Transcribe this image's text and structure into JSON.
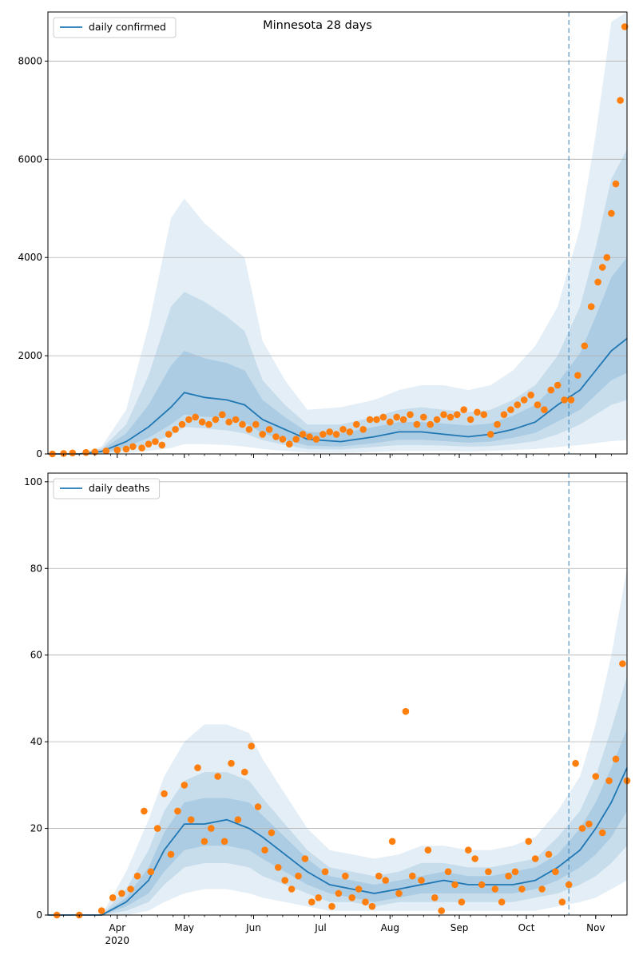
{
  "chart_data": [
    {
      "type": "line",
      "title": "Minnesota 28 days",
      "legend": {
        "position": "top-left",
        "entries": [
          "daily confirmed"
        ]
      },
      "ylim": [
        0,
        9000
      ],
      "yticks": [
        0,
        2000,
        4000,
        6000,
        8000
      ],
      "xlim": [
        "2020-03-01",
        "2020-11-15"
      ],
      "grid": "horizontal",
      "cutoff_date": "2020-10-20",
      "colors": {
        "line": "#1f77b4",
        "band": "#1f77b4",
        "points": "#ff7f0e",
        "cutoff": "#1f77b4"
      },
      "series": [
        {
          "name": "daily confirmed",
          "style": "line",
          "x": [
            "2020-03-01",
            "2020-03-15",
            "2020-03-25",
            "2020-04-05",
            "2020-04-15",
            "2020-04-25",
            "2020-05-01",
            "2020-05-10",
            "2020-05-20",
            "2020-05-28",
            "2020-06-05",
            "2020-06-15",
            "2020-06-25",
            "2020-07-10",
            "2020-07-25",
            "2020-08-05",
            "2020-08-15",
            "2020-08-25",
            "2020-09-05",
            "2020-09-15",
            "2020-09-25",
            "2020-10-05",
            "2020-10-15",
            "2020-10-25",
            "2020-11-01",
            "2020-11-08",
            "2020-11-15"
          ],
          "values": [
            0,
            0,
            50,
            250,
            550,
            950,
            1250,
            1150,
            1100,
            1000,
            700,
            500,
            300,
            250,
            350,
            450,
            450,
            400,
            350,
            400,
            500,
            650,
            1000,
            1300,
            1700,
            2100,
            2350
          ]
        }
      ],
      "bands": [
        {
          "level": "outer",
          "upper": [
            0,
            0,
            150,
            900,
            2600,
            4800,
            5200,
            4700,
            4300,
            4000,
            2300,
            1500,
            900,
            950,
            1100,
            1300,
            1400,
            1400,
            1300,
            1400,
            1700,
            2200,
            3000,
            4600,
            6500,
            8800,
            9000
          ],
          "lower": [
            0,
            0,
            0,
            20,
            60,
            120,
            200,
            200,
            180,
            150,
            100,
            60,
            30,
            20,
            40,
            60,
            60,
            60,
            50,
            60,
            80,
            100,
            140,
            180,
            220,
            260,
            280
          ]
        },
        {
          "level": "mid",
          "upper": [
            0,
            0,
            110,
            600,
            1600,
            3000,
            3300,
            3100,
            2800,
            2500,
            1500,
            1000,
            600,
            600,
            750,
            900,
            950,
            900,
            850,
            900,
            1100,
            1400,
            2000,
            3000,
            4200,
            5600,
            6200
          ],
          "lower": [
            0,
            0,
            10,
            80,
            200,
            380,
            550,
            520,
            480,
            420,
            280,
            180,
            100,
            90,
            140,
            180,
            180,
            170,
            150,
            160,
            200,
            260,
            400,
            600,
            800,
            1000,
            1100
          ]
        },
        {
          "level": "inner",
          "upper": [
            0,
            0,
            80,
            420,
            1000,
            1800,
            2100,
            1950,
            1850,
            1700,
            1100,
            750,
            450,
            420,
            550,
            650,
            650,
            620,
            580,
            620,
            780,
            1000,
            1450,
            2050,
            2800,
            3600,
            4000
          ],
          "lower": [
            0,
            0,
            20,
            140,
            330,
            600,
            800,
            760,
            720,
            640,
            420,
            290,
            170,
            150,
            220,
            290,
            290,
            260,
            230,
            250,
            330,
            430,
            660,
            900,
            1200,
            1500,
            1650
          ]
        }
      ],
      "observed": {
        "name": "observed",
        "x": [
          "2020-03-03",
          "2020-03-08",
          "2020-03-12",
          "2020-03-18",
          "2020-03-22",
          "2020-03-27",
          "2020-04-01",
          "2020-04-05",
          "2020-04-08",
          "2020-04-12",
          "2020-04-15",
          "2020-04-18",
          "2020-04-21",
          "2020-04-24",
          "2020-04-27",
          "2020-04-30",
          "2020-05-03",
          "2020-05-06",
          "2020-05-09",
          "2020-05-12",
          "2020-05-15",
          "2020-05-18",
          "2020-05-21",
          "2020-05-24",
          "2020-05-27",
          "2020-05-30",
          "2020-06-02",
          "2020-06-05",
          "2020-06-08",
          "2020-06-11",
          "2020-06-14",
          "2020-06-17",
          "2020-06-20",
          "2020-06-23",
          "2020-06-26",
          "2020-06-29",
          "2020-07-02",
          "2020-07-05",
          "2020-07-08",
          "2020-07-11",
          "2020-07-14",
          "2020-07-17",
          "2020-07-20",
          "2020-07-23",
          "2020-07-26",
          "2020-07-29",
          "2020-08-01",
          "2020-08-04",
          "2020-08-07",
          "2020-08-10",
          "2020-08-13",
          "2020-08-16",
          "2020-08-19",
          "2020-08-22",
          "2020-08-25",
          "2020-08-28",
          "2020-08-31",
          "2020-09-03",
          "2020-09-06",
          "2020-09-09",
          "2020-09-12",
          "2020-09-15",
          "2020-09-18",
          "2020-09-21",
          "2020-09-24",
          "2020-09-27",
          "2020-09-30",
          "2020-10-03",
          "2020-10-06",
          "2020-10-09",
          "2020-10-12",
          "2020-10-15",
          "2020-10-18",
          "2020-10-21",
          "2020-10-24",
          "2020-10-27",
          "2020-10-30",
          "2020-11-02",
          "2020-11-04",
          "2020-11-06",
          "2020-11-08",
          "2020-11-10",
          "2020-11-12",
          "2020-11-14"
        ],
        "values": [
          0,
          10,
          20,
          30,
          40,
          60,
          80,
          100,
          150,
          120,
          200,
          250,
          180,
          400,
          500,
          600,
          700,
          750,
          650,
          600,
          700,
          800,
          650,
          700,
          600,
          500,
          600,
          400,
          500,
          350,
          300,
          200,
          300,
          400,
          350,
          300,
          400,
          450,
          400,
          500,
          450,
          600,
          500,
          700,
          700,
          750,
          650,
          750,
          700,
          800,
          600,
          750,
          600,
          700,
          800,
          750,
          800,
          900,
          700,
          850,
          800,
          400,
          600,
          800,
          900,
          1000,
          1100,
          1200,
          1000,
          900,
          1300,
          1400,
          1100,
          1100,
          1600,
          2200,
          3000,
          3500,
          3800,
          4000,
          4900,
          5500,
          7200,
          8700
        ]
      }
    },
    {
      "type": "line",
      "title": "",
      "legend": {
        "position": "top-left",
        "entries": [
          "daily deaths"
        ]
      },
      "ylim": [
        0,
        102
      ],
      "yticks": [
        0,
        20,
        40,
        60,
        80,
        100
      ],
      "xlim": [
        "2020-03-01",
        "2020-11-15"
      ],
      "xticks": [
        {
          "date": "2020-04-01",
          "label": "Apr",
          "sublabel": "2020"
        },
        {
          "date": "2020-05-01",
          "label": "May"
        },
        {
          "date": "2020-06-01",
          "label": "Jun"
        },
        {
          "date": "2020-07-01",
          "label": "Jul"
        },
        {
          "date": "2020-08-01",
          "label": "Aug"
        },
        {
          "date": "2020-09-01",
          "label": "Sep"
        },
        {
          "date": "2020-10-01",
          "label": "Oct"
        },
        {
          "date": "2020-11-01",
          "label": "Nov"
        }
      ],
      "grid": "horizontal",
      "cutoff_date": "2020-10-20",
      "colors": {
        "line": "#1f77b4",
        "band": "#1f77b4",
        "points": "#ff7f0e",
        "cutoff": "#1f77b4"
      },
      "series": [
        {
          "name": "daily deaths",
          "style": "line",
          "x": [
            "2020-03-01",
            "2020-03-25",
            "2020-04-05",
            "2020-04-15",
            "2020-04-22",
            "2020-05-01",
            "2020-05-10",
            "2020-05-20",
            "2020-05-30",
            "2020-06-05",
            "2020-06-15",
            "2020-06-25",
            "2020-07-05",
            "2020-07-15",
            "2020-07-25",
            "2020-08-05",
            "2020-08-15",
            "2020-08-25",
            "2020-09-05",
            "2020-09-15",
            "2020-09-25",
            "2020-10-05",
            "2020-10-15",
            "2020-10-25",
            "2020-11-01",
            "2020-11-08",
            "2020-11-15"
          ],
          "values": [
            0,
            0,
            3,
            8,
            15,
            21,
            21,
            22,
            20,
            18,
            14,
            10,
            7,
            6,
            5,
            6,
            7,
            8,
            7,
            7,
            7,
            8,
            11,
            15,
            20,
            26,
            34
          ]
        }
      ],
      "bands": [
        {
          "level": "outer",
          "upper": [
            0,
            0,
            10,
            22,
            32,
            40,
            44,
            44,
            42,
            36,
            28,
            20,
            15,
            14,
            13,
            14,
            16,
            16,
            15,
            15,
            16,
            18,
            24,
            32,
            44,
            60,
            80
          ],
          "lower": [
            0,
            0,
            0,
            1,
            3,
            5,
            6,
            6,
            5,
            4,
            3,
            2,
            1,
            1,
            1,
            1,
            1,
            1,
            1,
            1,
            1,
            1,
            2,
            3,
            4,
            6,
            8
          ]
        },
        {
          "level": "mid",
          "upper": [
            0,
            0,
            6,
            15,
            24,
            31,
            33,
            33,
            31,
            27,
            21,
            15,
            11,
            10,
            9,
            10,
            12,
            12,
            11,
            11,
            12,
            13,
            18,
            24,
            32,
            43,
            55
          ],
          "lower": [
            0,
            0,
            1,
            3,
            7,
            11,
            12,
            12,
            11,
            9,
            7,
            5,
            3,
            3,
            2,
            3,
            3,
            3,
            3,
            3,
            3,
            4,
            5,
            7,
            9,
            12,
            16
          ]
        },
        {
          "level": "inner",
          "upper": [
            0,
            0,
            4,
            11,
            19,
            26,
            27,
            27,
            26,
            23,
            18,
            13,
            9,
            8,
            7,
            8,
            9,
            10,
            9,
            9,
            10,
            11,
            14,
            20,
            26,
            34,
            43
          ],
          "lower": [
            0,
            0,
            2,
            5,
            10,
            15,
            16,
            16,
            15,
            13,
            10,
            7,
            5,
            4,
            3,
            4,
            5,
            5,
            5,
            5,
            5,
            6,
            8,
            11,
            14,
            18,
            24
          ]
        }
      ],
      "observed": {
        "name": "observed",
        "x": [
          "2020-03-05",
          "2020-03-15",
          "2020-03-25",
          "2020-03-30",
          "2020-04-03",
          "2020-04-07",
          "2020-04-10",
          "2020-04-13",
          "2020-04-16",
          "2020-04-19",
          "2020-04-22",
          "2020-04-25",
          "2020-04-28",
          "2020-05-01",
          "2020-05-04",
          "2020-05-07",
          "2020-05-10",
          "2020-05-13",
          "2020-05-16",
          "2020-05-19",
          "2020-05-22",
          "2020-05-25",
          "2020-05-28",
          "2020-05-31",
          "2020-06-03",
          "2020-06-06",
          "2020-06-09",
          "2020-06-12",
          "2020-06-15",
          "2020-06-18",
          "2020-06-21",
          "2020-06-24",
          "2020-06-27",
          "2020-06-30",
          "2020-07-03",
          "2020-07-06",
          "2020-07-09",
          "2020-07-12",
          "2020-07-15",
          "2020-07-18",
          "2020-07-21",
          "2020-07-24",
          "2020-07-27",
          "2020-07-30",
          "2020-08-02",
          "2020-08-05",
          "2020-08-08",
          "2020-08-11",
          "2020-08-15",
          "2020-08-18",
          "2020-08-21",
          "2020-08-24",
          "2020-08-27",
          "2020-08-30",
          "2020-09-02",
          "2020-09-05",
          "2020-09-08",
          "2020-09-11",
          "2020-09-14",
          "2020-09-17",
          "2020-09-20",
          "2020-09-23",
          "2020-09-26",
          "2020-09-29",
          "2020-10-02",
          "2020-10-05",
          "2020-10-08",
          "2020-10-11",
          "2020-10-14",
          "2020-10-17",
          "2020-10-20",
          "2020-10-23",
          "2020-10-26",
          "2020-10-29",
          "2020-11-01",
          "2020-11-04",
          "2020-11-07",
          "2020-11-10",
          "2020-11-13",
          "2020-11-15"
        ],
        "values": [
          0,
          0,
          1,
          4,
          5,
          6,
          9,
          24,
          10,
          20,
          28,
          14,
          24,
          30,
          22,
          34,
          17,
          20,
          32,
          17,
          35,
          22,
          33,
          39,
          25,
          15,
          19,
          11,
          8,
          6,
          9,
          13,
          3,
          4,
          10,
          2,
          5,
          9,
          4,
          6,
          3,
          2,
          9,
          8,
          17,
          5,
          47,
          9,
          8,
          15,
          4,
          1,
          10,
          7,
          3,
          15,
          13,
          7,
          10,
          6,
          3,
          9,
          10,
          6,
          17,
          13,
          6,
          14,
          10,
          3,
          7,
          35,
          20,
          21,
          32,
          19,
          31,
          36,
          58,
          31
        ]
      }
    }
  ]
}
